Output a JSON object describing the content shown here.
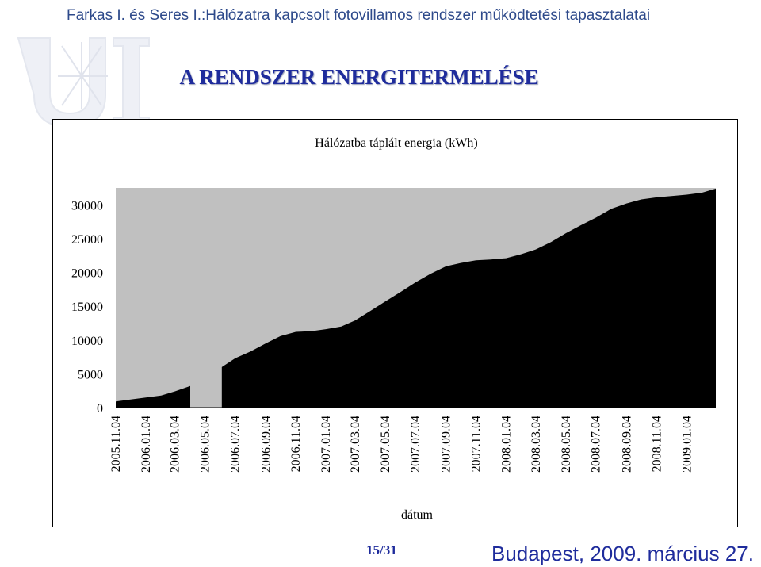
{
  "header": {
    "title": "Farkas I. és Seres I.:Hálózatra kapcsolt fotovillamos rendszer működtetési tapasztalatai"
  },
  "slide": {
    "title": "A RENDSZER ENERGITERMELÉSE"
  },
  "footer": {
    "page": "15/31",
    "location_date": "Budapest, 2009. március 27."
  },
  "chart_data": {
    "type": "area",
    "title": "Hálózatba táplált energia (kWh)",
    "xlabel": "dátum",
    "ylabel": "",
    "ylim": [
      0,
      32500
    ],
    "yticks": [
      0,
      5000,
      10000,
      15000,
      20000,
      25000,
      30000
    ],
    "xtick_labels": [
      "2005.11.04",
      "2006.01.04",
      "2006.03.04",
      "2006.05.04",
      "2006.07.04",
      "2006.09.04",
      "2006.11.04",
      "2007.01.04",
      "2007.03.04",
      "2007.05.04",
      "2007.07.04",
      "2007.09.04",
      "2007.11.04",
      "2008.01.04",
      "2008.03.04",
      "2008.05.04",
      "2008.07.04",
      "2008.09.04",
      "2008.11.04",
      "2009.01.04"
    ],
    "xlim": [
      "2005.11.04",
      "2009.03.04"
    ],
    "grid": false,
    "plot_background": "#c0c0c0",
    "fill_color": "#000000",
    "series": [
      {
        "values": [
          {
            "x": "2005.11.04",
            "y": 900
          },
          {
            "x": "2005.12.04",
            "y": 1200
          },
          {
            "x": "2006.01.04",
            "y": 1500
          },
          {
            "x": "2006.02.04",
            "y": 1800
          },
          {
            "x": "2006.03.04",
            "y": 2400
          },
          {
            "x": "2006.04.04",
            "y": 3200
          },
          {
            "x": "2006.04.06",
            "y": null
          },
          {
            "x": "2006.06.06",
            "y": null
          },
          {
            "x": "2006.06.07",
            "y": 6000
          },
          {
            "x": "2006.07.04",
            "y": 7300
          },
          {
            "x": "2006.08.04",
            "y": 8300
          },
          {
            "x": "2006.09.04",
            "y": 9500
          },
          {
            "x": "2006.10.04",
            "y": 10600
          },
          {
            "x": "2006.11.04",
            "y": 11200
          },
          {
            "x": "2006.12.04",
            "y": 11300
          },
          {
            "x": "2007.01.04",
            "y": 11600
          },
          {
            "x": "2007.02.04",
            "y": 12000
          },
          {
            "x": "2007.03.04",
            "y": 12900
          },
          {
            "x": "2007.04.04",
            "y": 14300
          },
          {
            "x": "2007.05.04",
            "y": 15700
          },
          {
            "x": "2007.06.04",
            "y": 17100
          },
          {
            "x": "2007.07.04",
            "y": 18500
          },
          {
            "x": "2007.08.04",
            "y": 19800
          },
          {
            "x": "2007.09.04",
            "y": 20900
          },
          {
            "x": "2007.10.04",
            "y": 21400
          },
          {
            "x": "2007.11.04",
            "y": 21800
          },
          {
            "x": "2007.12.04",
            "y": 21900
          },
          {
            "x": "2008.01.04",
            "y": 22100
          },
          {
            "x": "2008.02.04",
            "y": 22700
          },
          {
            "x": "2008.03.04",
            "y": 23400
          },
          {
            "x": "2008.04.04",
            "y": 24500
          },
          {
            "x": "2008.05.04",
            "y": 25800
          },
          {
            "x": "2008.06.04",
            "y": 27000
          },
          {
            "x": "2008.07.04",
            "y": 28100
          },
          {
            "x": "2008.08.04",
            "y": 29400
          },
          {
            "x": "2008.09.04",
            "y": 30200
          },
          {
            "x": "2008.10.04",
            "y": 30800
          },
          {
            "x": "2008.11.04",
            "y": 31100
          },
          {
            "x": "2008.12.04",
            "y": 31300
          },
          {
            "x": "2009.01.04",
            "y": 31500
          },
          {
            "x": "2009.02.04",
            "y": 31800
          },
          {
            "x": "2009.03.04",
            "y": 32400
          }
        ]
      }
    ]
  }
}
